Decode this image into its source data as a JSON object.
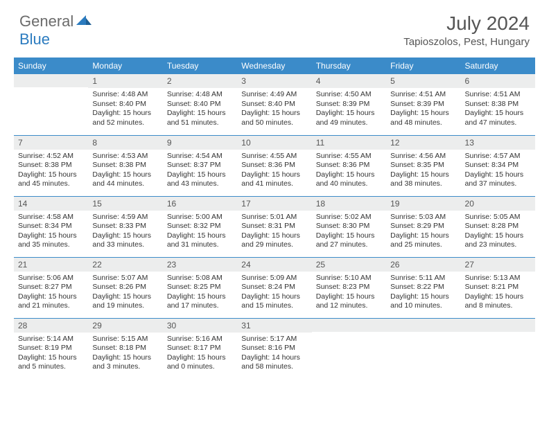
{
  "brand": {
    "word1": "General",
    "word2": "Blue",
    "word1_color": "#6b6b6b",
    "word2_color": "#2b7bbf",
    "icon_color": "#2b7bbf"
  },
  "title": "July 2024",
  "location": "Tapioszolos, Pest, Hungary",
  "colors": {
    "header_bg": "#3b8bc9",
    "header_text": "#ffffff",
    "daynum_bg": "#eceded",
    "border": "#3b8bc9",
    "text": "#333333",
    "background": "#ffffff"
  },
  "typography": {
    "title_fontsize": 28,
    "location_fontsize": 15,
    "header_fontsize": 12,
    "daynum_fontsize": 12,
    "body_fontsize": 10.5
  },
  "columns": [
    "Sunday",
    "Monday",
    "Tuesday",
    "Wednesday",
    "Thursday",
    "Friday",
    "Saturday"
  ],
  "weeks": [
    [
      {
        "num": "",
        "lines": []
      },
      {
        "num": "1",
        "lines": [
          "Sunrise: 4:48 AM",
          "Sunset: 8:40 PM",
          "Daylight: 15 hours and 52 minutes."
        ]
      },
      {
        "num": "2",
        "lines": [
          "Sunrise: 4:48 AM",
          "Sunset: 8:40 PM",
          "Daylight: 15 hours and 51 minutes."
        ]
      },
      {
        "num": "3",
        "lines": [
          "Sunrise: 4:49 AM",
          "Sunset: 8:40 PM",
          "Daylight: 15 hours and 50 minutes."
        ]
      },
      {
        "num": "4",
        "lines": [
          "Sunrise: 4:50 AM",
          "Sunset: 8:39 PM",
          "Daylight: 15 hours and 49 minutes."
        ]
      },
      {
        "num": "5",
        "lines": [
          "Sunrise: 4:51 AM",
          "Sunset: 8:39 PM",
          "Daylight: 15 hours and 48 minutes."
        ]
      },
      {
        "num": "6",
        "lines": [
          "Sunrise: 4:51 AM",
          "Sunset: 8:38 PM",
          "Daylight: 15 hours and 47 minutes."
        ]
      }
    ],
    [
      {
        "num": "7",
        "lines": [
          "Sunrise: 4:52 AM",
          "Sunset: 8:38 PM",
          "Daylight: 15 hours and 45 minutes."
        ]
      },
      {
        "num": "8",
        "lines": [
          "Sunrise: 4:53 AM",
          "Sunset: 8:38 PM",
          "Daylight: 15 hours and 44 minutes."
        ]
      },
      {
        "num": "9",
        "lines": [
          "Sunrise: 4:54 AM",
          "Sunset: 8:37 PM",
          "Daylight: 15 hours and 43 minutes."
        ]
      },
      {
        "num": "10",
        "lines": [
          "Sunrise: 4:55 AM",
          "Sunset: 8:36 PM",
          "Daylight: 15 hours and 41 minutes."
        ]
      },
      {
        "num": "11",
        "lines": [
          "Sunrise: 4:55 AM",
          "Sunset: 8:36 PM",
          "Daylight: 15 hours and 40 minutes."
        ]
      },
      {
        "num": "12",
        "lines": [
          "Sunrise: 4:56 AM",
          "Sunset: 8:35 PM",
          "Daylight: 15 hours and 38 minutes."
        ]
      },
      {
        "num": "13",
        "lines": [
          "Sunrise: 4:57 AM",
          "Sunset: 8:34 PM",
          "Daylight: 15 hours and 37 minutes."
        ]
      }
    ],
    [
      {
        "num": "14",
        "lines": [
          "Sunrise: 4:58 AM",
          "Sunset: 8:34 PM",
          "Daylight: 15 hours and 35 minutes."
        ]
      },
      {
        "num": "15",
        "lines": [
          "Sunrise: 4:59 AM",
          "Sunset: 8:33 PM",
          "Daylight: 15 hours and 33 minutes."
        ]
      },
      {
        "num": "16",
        "lines": [
          "Sunrise: 5:00 AM",
          "Sunset: 8:32 PM",
          "Daylight: 15 hours and 31 minutes."
        ]
      },
      {
        "num": "17",
        "lines": [
          "Sunrise: 5:01 AM",
          "Sunset: 8:31 PM",
          "Daylight: 15 hours and 29 minutes."
        ]
      },
      {
        "num": "18",
        "lines": [
          "Sunrise: 5:02 AM",
          "Sunset: 8:30 PM",
          "Daylight: 15 hours and 27 minutes."
        ]
      },
      {
        "num": "19",
        "lines": [
          "Sunrise: 5:03 AM",
          "Sunset: 8:29 PM",
          "Daylight: 15 hours and 25 minutes."
        ]
      },
      {
        "num": "20",
        "lines": [
          "Sunrise: 5:05 AM",
          "Sunset: 8:28 PM",
          "Daylight: 15 hours and 23 minutes."
        ]
      }
    ],
    [
      {
        "num": "21",
        "lines": [
          "Sunrise: 5:06 AM",
          "Sunset: 8:27 PM",
          "Daylight: 15 hours and 21 minutes."
        ]
      },
      {
        "num": "22",
        "lines": [
          "Sunrise: 5:07 AM",
          "Sunset: 8:26 PM",
          "Daylight: 15 hours and 19 minutes."
        ]
      },
      {
        "num": "23",
        "lines": [
          "Sunrise: 5:08 AM",
          "Sunset: 8:25 PM",
          "Daylight: 15 hours and 17 minutes."
        ]
      },
      {
        "num": "24",
        "lines": [
          "Sunrise: 5:09 AM",
          "Sunset: 8:24 PM",
          "Daylight: 15 hours and 15 minutes."
        ]
      },
      {
        "num": "25",
        "lines": [
          "Sunrise: 5:10 AM",
          "Sunset: 8:23 PM",
          "Daylight: 15 hours and 12 minutes."
        ]
      },
      {
        "num": "26",
        "lines": [
          "Sunrise: 5:11 AM",
          "Sunset: 8:22 PM",
          "Daylight: 15 hours and 10 minutes."
        ]
      },
      {
        "num": "27",
        "lines": [
          "Sunrise: 5:13 AM",
          "Sunset: 8:21 PM",
          "Daylight: 15 hours and 8 minutes."
        ]
      }
    ],
    [
      {
        "num": "28",
        "lines": [
          "Sunrise: 5:14 AM",
          "Sunset: 8:19 PM",
          "Daylight: 15 hours and 5 minutes."
        ]
      },
      {
        "num": "29",
        "lines": [
          "Sunrise: 5:15 AM",
          "Sunset: 8:18 PM",
          "Daylight: 15 hours and 3 minutes."
        ]
      },
      {
        "num": "30",
        "lines": [
          "Sunrise: 5:16 AM",
          "Sunset: 8:17 PM",
          "Daylight: 15 hours and 0 minutes."
        ]
      },
      {
        "num": "31",
        "lines": [
          "Sunrise: 5:17 AM",
          "Sunset: 8:16 PM",
          "Daylight: 14 hours and 58 minutes."
        ]
      },
      {
        "num": "",
        "lines": []
      },
      {
        "num": "",
        "lines": []
      },
      {
        "num": "",
        "lines": []
      }
    ]
  ]
}
